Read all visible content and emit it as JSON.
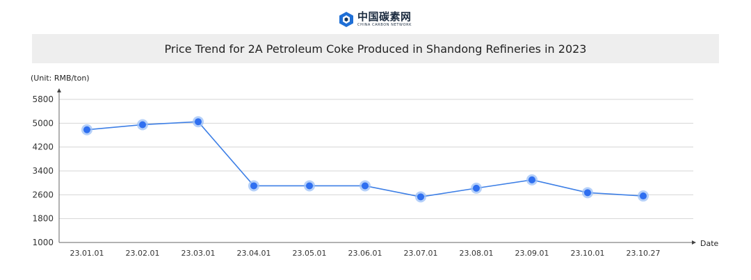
{
  "brand": {
    "name_cn": "中国碳素网",
    "name_en": "CHINA CARBON NETWORK"
  },
  "chart_data": {
    "type": "line",
    "title": "Price Trend for 2A Petroleum Coke Produced in Shandong Refineries in 2023",
    "unit_label": "(Unit: RMB/ton)",
    "xlabel": "Date",
    "categories": [
      "23.01.01",
      "23.02.01",
      "23.03.01",
      "23.04.01",
      "23.05.01",
      "23.06.01",
      "23.07.01",
      "23.08.01",
      "23.09.01",
      "23.10.01",
      "23.10.27"
    ],
    "series": [
      {
        "values": [
          4780,
          4950,
          5050,
          2900,
          2900,
          2900,
          2530,
          2820,
          3100,
          2670,
          2560
        ]
      }
    ],
    "ylim": [
      1000,
      5800
    ],
    "yticks": [
      1000,
      1800,
      2600,
      3400,
      4200,
      5000,
      5800
    ],
    "grid": true,
    "line_color": "#3d7fe6",
    "marker_color": "#2f6ff0",
    "marker_halo_color": "#9cc0f7"
  }
}
